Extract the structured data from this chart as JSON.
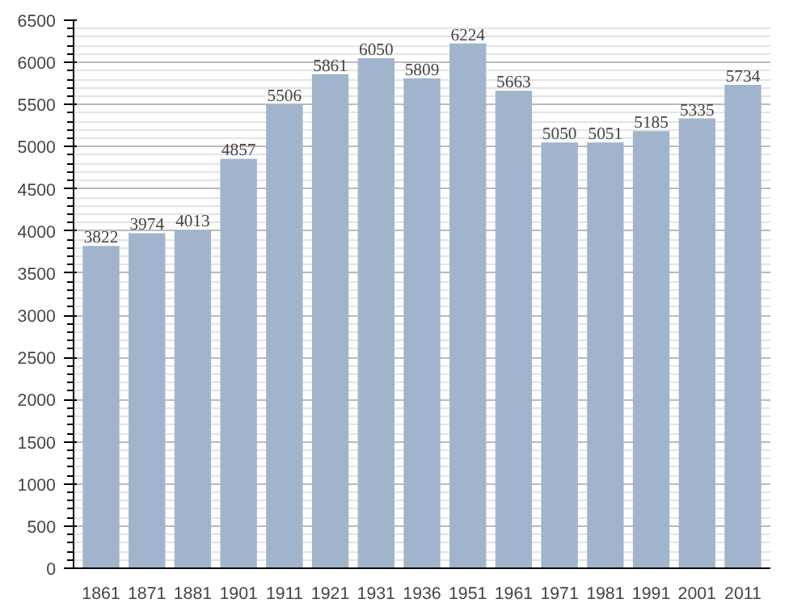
{
  "chart_data": {
    "type": "bar",
    "categories": [
      "1861",
      "1871",
      "1881",
      "1901",
      "1911",
      "1921",
      "1931",
      "1936",
      "1951",
      "1961",
      "1971",
      "1981",
      "1991",
      "2001",
      "2011"
    ],
    "values": [
      3822,
      3974,
      4013,
      4857,
      5506,
      5861,
      6050,
      5809,
      6224,
      5663,
      5050,
      5051,
      5185,
      5335,
      5734
    ],
    "color": "#a0b5cc",
    "ylim": [
      0,
      6500
    ],
    "yticks": [
      0,
      500,
      1000,
      1500,
      2000,
      2500,
      3000,
      3500,
      4000,
      4500,
      5000,
      5500,
      6000,
      6500
    ],
    "grid": "y",
    "data_labels": true
  }
}
